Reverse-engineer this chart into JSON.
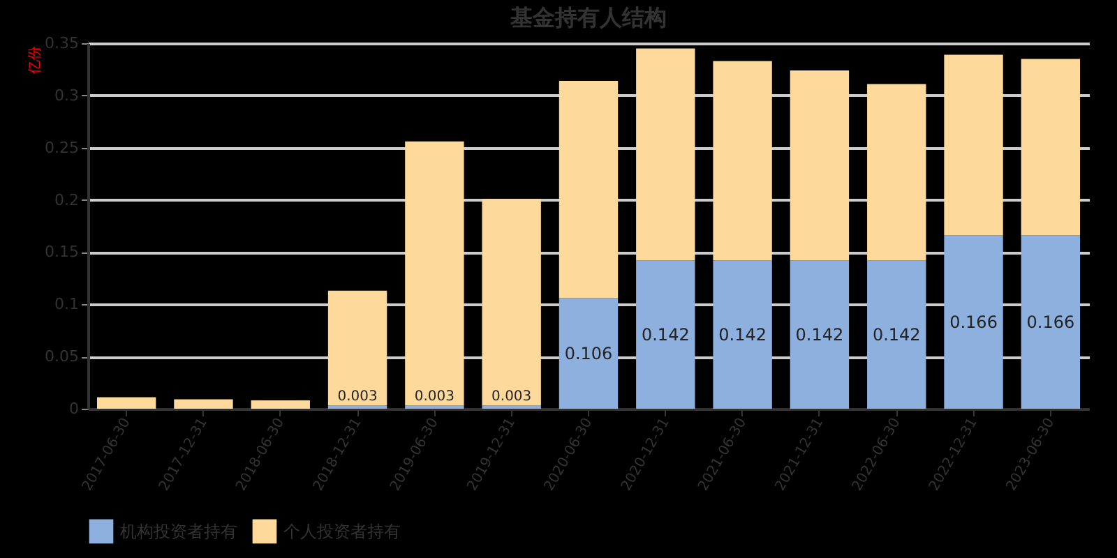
{
  "chart_data": {
    "type": "bar",
    "title": "基金持有人结构",
    "ylabel": "亿份",
    "stacked": true,
    "categories": [
      "2017-06-30",
      "2017-12-31",
      "2018-06-30",
      "2018-12-31",
      "2019-06-30",
      "2019-12-31",
      "2020-06-30",
      "2020-12-31",
      "2021-06-30",
      "2021-12-31",
      "2022-06-30",
      "2022-12-31",
      "2023-06-30"
    ],
    "series": [
      {
        "name": "机构投资者持有",
        "color": "#8eb0de",
        "values": [
          0,
          0,
          0,
          0.003,
          0.003,
          0.003,
          0.106,
          0.142,
          0.142,
          0.142,
          0.142,
          0.166,
          0.166
        ],
        "value_labels": [
          null,
          null,
          null,
          "0.003",
          "0.003",
          "0.003",
          "0.106",
          "0.142",
          "0.142",
          "0.142",
          "0.142",
          "0.166",
          "0.166"
        ]
      },
      {
        "name": "个人投资者持有",
        "color": "#fdd99b",
        "values": [
          0.011,
          0.009,
          0.008,
          0.11,
          0.253,
          0.198,
          0.208,
          0.203,
          0.191,
          0.182,
          0.169,
          0.173,
          0.169
        ]
      }
    ],
    "ylim": [
      0,
      0.35
    ],
    "yticks": [
      0,
      0.05,
      0.1,
      0.15,
      0.2,
      0.25,
      0.3,
      0.35
    ],
    "grid": "y",
    "legend": "bottom"
  }
}
